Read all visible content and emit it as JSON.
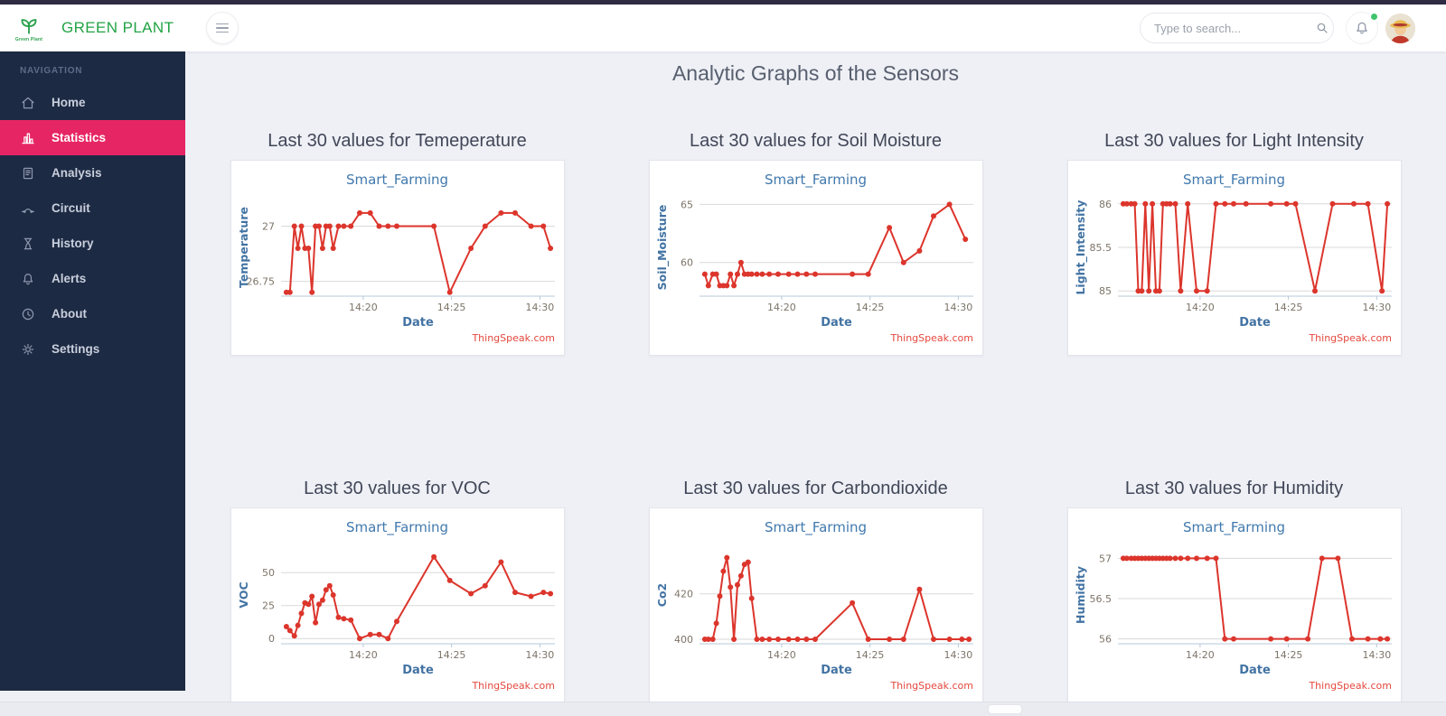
{
  "header": {
    "brand": "GREEN PLANT",
    "logo_caption": "Green Plant",
    "search_placeholder": "Type to search...",
    "notification_badge_color": "#3ec46d"
  },
  "sidebar": {
    "section_label": "NAVIGATION",
    "items": [
      {
        "label": "Home",
        "icon": "home",
        "active": false
      },
      {
        "label": "Statistics",
        "icon": "statistics",
        "active": true
      },
      {
        "label": "Analysis",
        "icon": "analysis",
        "active": false
      },
      {
        "label": "Circuit",
        "icon": "circuit",
        "active": false
      },
      {
        "label": "History",
        "icon": "history",
        "active": false
      },
      {
        "label": "Alerts",
        "icon": "alerts",
        "active": false
      },
      {
        "label": "About",
        "icon": "about",
        "active": false
      },
      {
        "label": "Settings",
        "icon": "settings",
        "active": false
      }
    ]
  },
  "page": {
    "title": "Analytic Graphs of the Sensors"
  },
  "chart_common": {
    "title": "Smart_Farming",
    "xlabel": "Date",
    "watermark": "ThingSpeak.com",
    "xdomain": [
      15.35,
      30.85
    ],
    "xticks": [
      {
        "v": 20,
        "label": "14:20"
      },
      {
        "v": 25,
        "label": "14:25"
      },
      {
        "v": 30,
        "label": "14:30"
      }
    ],
    "line_color": "#dc352c",
    "grid_color": "#d9d9d9",
    "axis_color": "#b7c8d8",
    "tick_color": "#7d7468",
    "label_color": "#4273a3",
    "watermark_color": "#e4483e"
  },
  "charts": [
    {
      "id": "temperature",
      "heading": "Last 30 values for Temeperature",
      "ylabel": "Temperature",
      "ydomain": [
        26.683,
        27.125
      ],
      "yticks": [
        {
          "v": 27,
          "label": "27"
        },
        {
          "v": 26.75,
          "label": "26.75"
        }
      ],
      "type": "line",
      "x": [
        15.65,
        15.85,
        16.1,
        16.3,
        16.5,
        16.7,
        16.9,
        17.1,
        17.3,
        17.5,
        17.7,
        17.9,
        18.1,
        18.3,
        18.6,
        18.9,
        19.3,
        19.8,
        20.4,
        20.9,
        21.4,
        21.9,
        24.0,
        24.9,
        26.1,
        26.9,
        27.8,
        28.6,
        29.5,
        30.2,
        30.6
      ],
      "y": [
        26.7,
        26.7,
        27,
        26.9,
        27,
        26.9,
        26.9,
        26.7,
        27,
        27,
        26.9,
        27,
        27,
        26.9,
        27,
        27,
        27,
        27.06,
        27.06,
        27,
        27,
        27,
        27,
        26.7,
        26.9,
        27,
        27.06,
        27.06,
        27,
        27,
        26.9
      ]
    },
    {
      "id": "soil_moisture",
      "heading": "Last 30 values for Soil Moisture",
      "ylabel": "Soil_Moisture",
      "ydomain": [
        57.1,
        65.5
      ],
      "yticks": [
        {
          "v": 65,
          "label": "65"
        },
        {
          "v": 60,
          "label": "60"
        }
      ],
      "type": "line",
      "x": [
        15.65,
        15.85,
        16.1,
        16.3,
        16.5,
        16.7,
        16.9,
        17.1,
        17.3,
        17.5,
        17.7,
        17.9,
        18.1,
        18.3,
        18.6,
        18.9,
        19.3,
        19.8,
        20.4,
        20.9,
        21.4,
        21.9,
        24.0,
        24.9,
        26.1,
        26.9,
        27.8,
        28.6,
        29.5,
        30.4
      ],
      "y": [
        59,
        58,
        59,
        59,
        58,
        58,
        58,
        59,
        58,
        59,
        60,
        59,
        59,
        59,
        59,
        59,
        59,
        59,
        59,
        59,
        59,
        59,
        59,
        59,
        63,
        60,
        61,
        64,
        65,
        62
      ]
    },
    {
      "id": "light_intensity",
      "heading": "Last 30 values for Light Intensity",
      "ylabel": "Light_Intensity",
      "ydomain": [
        84.94,
        86.06
      ],
      "yticks": [
        {
          "v": 86,
          "label": "86"
        },
        {
          "v": 85.5,
          "label": "85.5"
        },
        {
          "v": 85,
          "label": "85"
        }
      ],
      "type": "line",
      "x": [
        15.65,
        15.85,
        16.1,
        16.3,
        16.5,
        16.7,
        16.9,
        17.1,
        17.3,
        17.5,
        17.7,
        17.9,
        18.1,
        18.3,
        18.6,
        18.9,
        19.3,
        19.8,
        20.4,
        20.9,
        21.4,
        21.9,
        22.6,
        24.0,
        24.9,
        25.4,
        26.5,
        27.5,
        28.7,
        29.5,
        30.3,
        30.6
      ],
      "y": [
        86,
        86,
        86,
        86,
        85,
        85,
        86,
        85,
        86,
        85,
        85,
        86,
        86,
        86,
        86,
        85,
        86,
        85,
        85,
        86,
        86,
        86,
        86,
        86,
        86,
        86,
        85,
        86,
        86,
        86,
        85,
        86
      ]
    },
    {
      "id": "voc",
      "heading": "Last 30 values for VOC",
      "ylabel": "VOC",
      "ydomain": [
        -4,
        70
      ],
      "yticks": [
        {
          "v": 50,
          "label": "50"
        },
        {
          "v": 25,
          "label": "25"
        },
        {
          "v": 0,
          "label": "0"
        }
      ],
      "type": "line",
      "x": [
        15.65,
        15.85,
        16.1,
        16.3,
        16.5,
        16.7,
        16.9,
        17.1,
        17.3,
        17.5,
        17.7,
        17.9,
        18.1,
        18.3,
        18.6,
        18.9,
        19.3,
        19.8,
        20.4,
        20.9,
        21.4,
        21.9,
        24.0,
        24.9,
        26.1,
        26.9,
        27.8,
        28.6,
        29.5,
        30.2,
        30.6
      ],
      "y": [
        9,
        6,
        2,
        10,
        19,
        27,
        26,
        32,
        12,
        26,
        29,
        37,
        40,
        33,
        16,
        15,
        14,
        0,
        3,
        3,
        0,
        13,
        62,
        44,
        34,
        40,
        58,
        35,
        32,
        35,
        34
      ]
    },
    {
      "id": "carbondioxide",
      "heading": "Last 30 values for Carbondioxide",
      "ylabel": "Co2",
      "ydomain": [
        398,
        441
      ],
      "yticks": [
        {
          "v": 420,
          "label": "420"
        },
        {
          "v": 400,
          "label": "400"
        }
      ],
      "type": "line",
      "x": [
        15.65,
        15.85,
        16.1,
        16.3,
        16.5,
        16.7,
        16.9,
        17.1,
        17.3,
        17.5,
        17.7,
        17.9,
        18.1,
        18.3,
        18.6,
        18.9,
        19.3,
        19.8,
        20.4,
        20.9,
        21.4,
        21.9,
        24.0,
        24.9,
        26.1,
        26.9,
        27.8,
        28.6,
        29.5,
        30.2,
        30.6
      ],
      "y": [
        400,
        400,
        400,
        407,
        419,
        430,
        436,
        423,
        400,
        424,
        428,
        433,
        434,
        418,
        400,
        400,
        400,
        400,
        400,
        400,
        400,
        400,
        416,
        400,
        400,
        400,
        422,
        400,
        400,
        400,
        400
      ]
    },
    {
      "id": "humidity",
      "heading": "Last 30 values for Humidity",
      "ylabel": "Humidity",
      "ydomain": [
        55.94,
        57.15
      ],
      "yticks": [
        {
          "v": 57,
          "label": "57"
        },
        {
          "v": 56.5,
          "label": "56.5"
        },
        {
          "v": 56,
          "label": "56"
        }
      ],
      "type": "line",
      "x": [
        15.65,
        15.85,
        16.1,
        16.3,
        16.5,
        16.7,
        16.9,
        17.1,
        17.3,
        17.5,
        17.7,
        17.9,
        18.1,
        18.3,
        18.6,
        18.9,
        19.3,
        19.8,
        20.4,
        20.9,
        21.4,
        21.9,
        24.0,
        24.9,
        26.1,
        26.9,
        27.8,
        28.6,
        29.5,
        30.2,
        30.6
      ],
      "y": [
        57,
        57,
        57,
        57,
        57,
        57,
        57,
        57,
        57,
        57,
        57,
        57,
        57,
        57,
        57,
        57,
        57,
        57,
        57,
        57,
        56,
        56,
        56,
        56,
        56,
        57,
        57,
        56,
        56,
        56,
        56
      ]
    }
  ],
  "colors": {
    "accent_pink": "#e62565",
    "sidebar_bg": "#1d2a44",
    "brand_green": "#22a345",
    "topstrip": "#2f2b42",
    "main_bg": "#eef0f5",
    "chart_line_red": "#dc352c"
  }
}
